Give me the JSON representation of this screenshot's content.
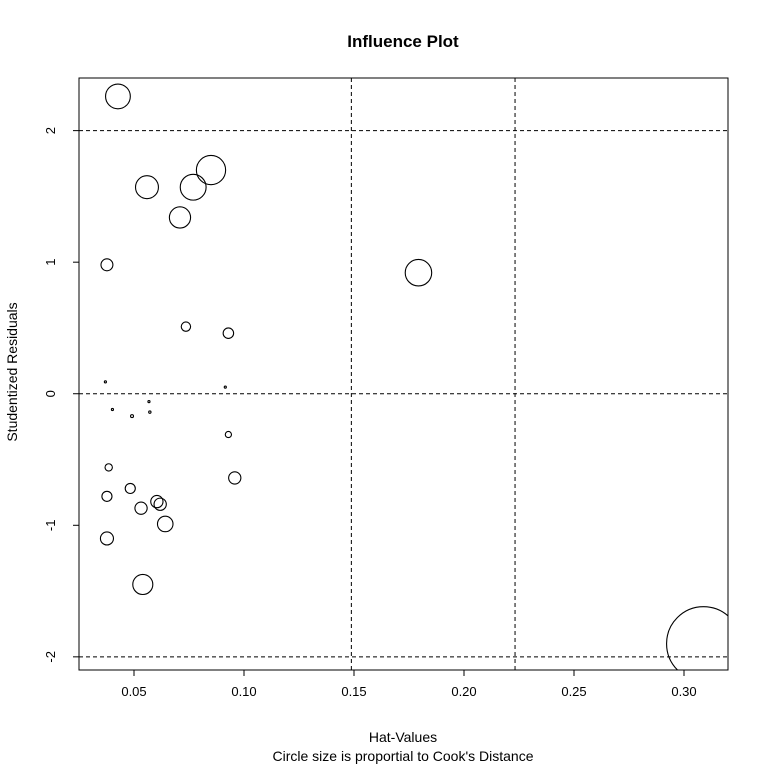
{
  "chart_data": {
    "type": "scatter",
    "title": "Influence Plot",
    "xlabel": "Hat-Values",
    "ylabel": "Studentized Residuals",
    "subtitle": "Circle size is proportial to Cook's Distance",
    "xlim": [
      0.025,
      0.32
    ],
    "ylim": [
      -2.1,
      2.4
    ],
    "x_ticks": [
      0.05,
      0.1,
      0.15,
      0.2,
      0.25,
      0.3
    ],
    "x_tick_labels": [
      "0.05",
      "0.10",
      "0.15",
      "0.20",
      "0.25",
      "0.30"
    ],
    "y_ticks": [
      -2,
      -1,
      0,
      1,
      2
    ],
    "y_tick_labels": [
      "-2",
      "-1",
      "0",
      "1",
      "2"
    ],
    "reference_lines": {
      "vertical": [
        0.1488,
        0.2232
      ],
      "horizontal": [
        -2,
        0,
        2
      ]
    },
    "grid": false,
    "legend": "none",
    "points": [
      {
        "x": 0.0427,
        "y": 2.26,
        "cook": 0.056
      },
      {
        "x": 0.0559,
        "y": 1.57,
        "cook": 0.048
      },
      {
        "x": 0.0769,
        "y": 1.57,
        "cook": 0.061
      },
      {
        "x": 0.085,
        "y": 1.7,
        "cook": 0.078
      },
      {
        "x": 0.0709,
        "y": 1.34,
        "cook": 0.041
      },
      {
        "x": 0.0377,
        "y": 0.98,
        "cook": 0.013
      },
      {
        "x": 0.1793,
        "y": 0.92,
        "cook": 0.064
      },
      {
        "x": 0.0736,
        "y": 0.51,
        "cook": 0.008
      },
      {
        "x": 0.0929,
        "y": 0.46,
        "cook": 0.01
      },
      {
        "x": 0.037,
        "y": 0.09,
        "cook": 0.0004
      },
      {
        "x": 0.0915,
        "y": 0.05,
        "cook": 0.0004
      },
      {
        "x": 0.0402,
        "y": -0.12,
        "cook": 0.0004
      },
      {
        "x": 0.0568,
        "y": -0.06,
        "cook": 0.0004
      },
      {
        "x": 0.0572,
        "y": -0.14,
        "cook": 0.0005
      },
      {
        "x": 0.0491,
        "y": -0.17,
        "cook": 0.0008
      },
      {
        "x": 0.0929,
        "y": -0.31,
        "cook": 0.0035
      },
      {
        "x": 0.0385,
        "y": -0.56,
        "cook": 0.0049
      },
      {
        "x": 0.0958,
        "y": -0.64,
        "cook": 0.0137
      },
      {
        "x": 0.0483,
        "y": -0.72,
        "cook": 0.0093
      },
      {
        "x": 0.0377,
        "y": -0.78,
        "cook": 0.0093
      },
      {
        "x": 0.0604,
        "y": -0.82,
        "cook": 0.0137
      },
      {
        "x": 0.0619,
        "y": -0.84,
        "cook": 0.0137
      },
      {
        "x": 0.0532,
        "y": -0.87,
        "cook": 0.0137
      },
      {
        "x": 0.0642,
        "y": -0.99,
        "cook": 0.022
      },
      {
        "x": 0.0377,
        "y": -1.1,
        "cook": 0.0155
      },
      {
        "x": 0.054,
        "y": -1.45,
        "cook": 0.0366
      },
      {
        "x": 0.3089,
        "y": -1.9,
        "cook": 0.5
      }
    ]
  }
}
